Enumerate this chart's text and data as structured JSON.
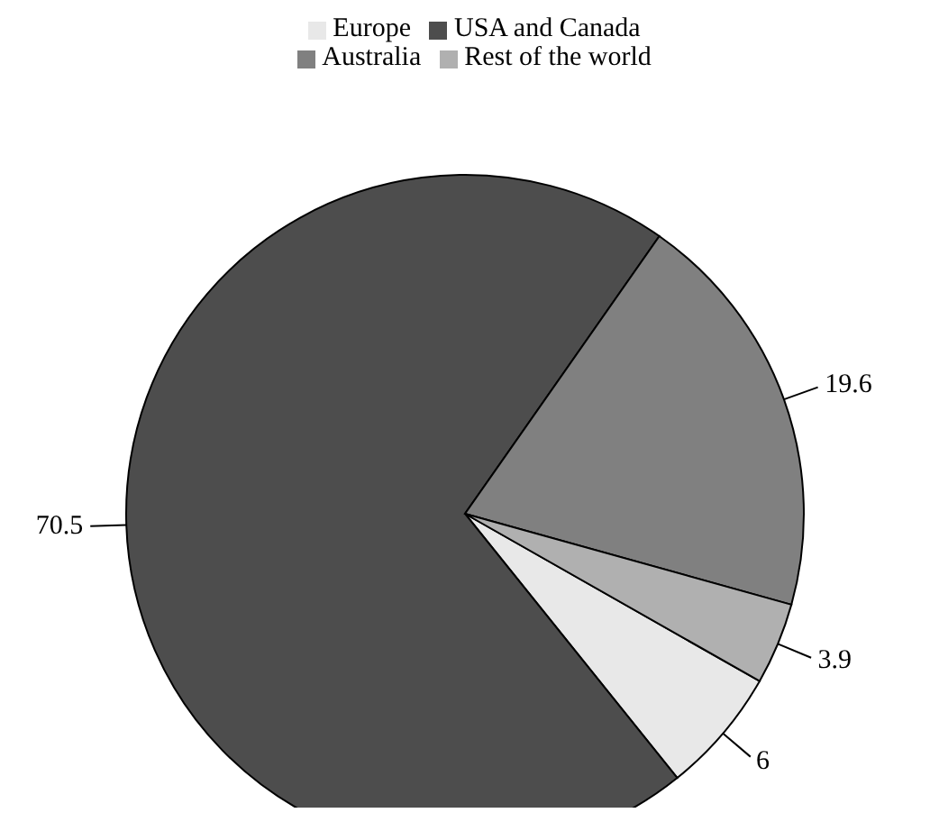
{
  "chart_data": {
    "type": "pie",
    "categories": [
      "Europe",
      "USA and Canada",
      "Australia",
      "Rest of the world"
    ],
    "values": [
      6,
      70.5,
      19.6,
      3.9
    ],
    "colors": [
      "#e8e8e8",
      "#4d4d4d",
      "#808080",
      "#b0b0b0"
    ],
    "data_labels": true,
    "legend": "top"
  }
}
